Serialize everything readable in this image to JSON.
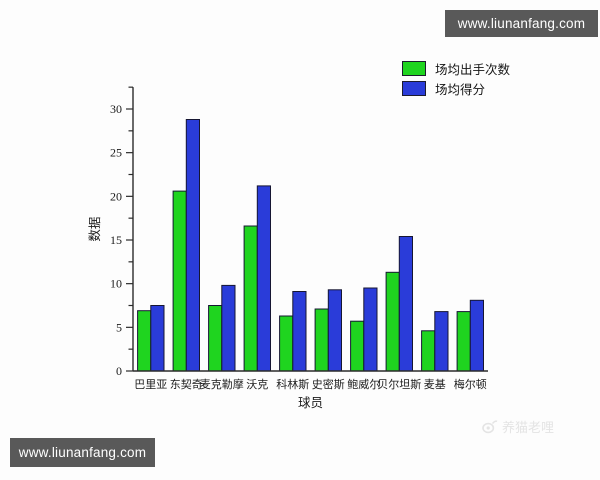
{
  "watermarks": {
    "top_right": "www.liunanfang.com",
    "bottom_left": "www.liunanfang.com",
    "corner_faint": "养猫老哩"
  },
  "colors": {
    "shots_green": "#1fd41f",
    "points_blue": "#2a3cd9",
    "bar_outline": "#161632",
    "axis": "#2b2b2b",
    "text": "#1c1c1c",
    "badge_bg": "#595959",
    "badge_text": "#ffffff",
    "faint_watermark": "#e4e4e4"
  },
  "chart_data": {
    "type": "bar",
    "categories": [
      "巴里亚",
      "东契奇",
      "麦克勒摩",
      "沃克",
      "科林斯",
      "史密斯",
      "鲍威尔",
      "贝尔坦斯",
      "麦基",
      "梅尔顿"
    ],
    "series": [
      {
        "name": "场均出手次数",
        "color_key": "shots_green",
        "values": [
          6.9,
          20.6,
          7.5,
          16.6,
          6.3,
          7.1,
          5.7,
          11.3,
          4.6,
          6.8
        ]
      },
      {
        "name": "场均得分",
        "color_key": "points_blue",
        "values": [
          7.5,
          28.8,
          9.8,
          21.2,
          9.1,
          9.3,
          9.5,
          15.4,
          6.8,
          8.1
        ]
      }
    ],
    "title": "",
    "xlabel": "球员",
    "ylabel": "数据",
    "ylim": [
      0,
      32.5
    ],
    "yticks": [
      0,
      5,
      10,
      15,
      20,
      25,
      30
    ],
    "minor_tick_step": 2.5,
    "grid": false,
    "legend_position": "top-right"
  }
}
